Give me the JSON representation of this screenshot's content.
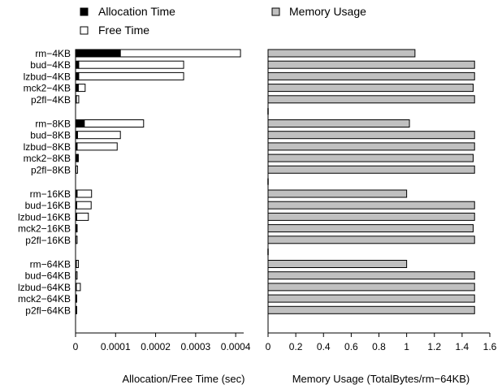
{
  "chart_data": [
    {
      "type": "bar",
      "orientation": "horizontal",
      "stacked": true,
      "xlabel": "Allocation/Free Time (sec)",
      "ylabel": "",
      "xlim": [
        0,
        0.00042
      ],
      "xticks": [
        "0",
        "0.0001",
        "0.0002",
        "0.0003",
        "0.0004"
      ],
      "xtick_values": [
        0,
        0.0001,
        0.0002,
        0.0003,
        0.0004
      ],
      "grid": false,
      "legend": "top",
      "categories": [
        "rm−4KB",
        "bud−4KB",
        "lzbud−4KB",
        "mck2−4KB",
        "p2fl−4KB",
        "rm−8KB",
        "bud−8KB",
        "lzbud−8KB",
        "mck2−8KB",
        "p2fl−8KB",
        "rm−16KB",
        "bud−16KB",
        "lzbud−16KB",
        "mck2−16KB",
        "p2fl−16KB",
        "rm−64KB",
        "bud−64KB",
        "lzbud−64KB",
        "mck2−64KB",
        "p2fl−64KB"
      ],
      "series": [
        {
          "name": "Allocation Time",
          "color": "#000000",
          "values": [
            0.000112,
            8e-06,
            8e-06,
            7e-06,
            2e-06,
            2.2e-05,
            5e-06,
            4e-06,
            5e-06,
            1e-06,
            4e-06,
            3e-06,
            3e-06,
            2e-06,
            1e-06,
            2e-06,
            1e-06,
            2e-06,
            1e-06,
            1e-06
          ]
        },
        {
          "name": "Free Time",
          "color": "#ffffff",
          "values": [
            0.0003,
            0.000262,
            0.000262,
            1.7e-05,
            6e-06,
            0.000148,
            0.000107,
            0.0001,
            2e-06,
            4e-06,
            3.6e-05,
            3.6e-05,
            2.9e-05,
            2e-06,
            3e-06,
            5e-06,
            3e-06,
            1e-05,
            2e-06,
            2e-06
          ]
        }
      ]
    },
    {
      "type": "bar",
      "orientation": "horizontal",
      "xlabel": "Memory Usage (TotalBytes/rm−64KB)",
      "ylabel": "",
      "xlim": [
        0,
        1.6
      ],
      "xticks": [
        "0",
        "0.2",
        "0.4",
        "0.6",
        "0.8",
        "1",
        "1.2",
        "1.4",
        "1.6"
      ],
      "xtick_values": [
        0,
        0.2,
        0.4,
        0.6,
        0.8,
        1.0,
        1.2,
        1.4,
        1.6
      ],
      "grid": false,
      "legend": "top",
      "categories": [
        "rm−4KB",
        "bud−4KB",
        "lzbud−4KB",
        "mck2−4KB",
        "p2fl−4KB",
        "rm−8KB",
        "bud−8KB",
        "lzbud−8KB",
        "mck2−8KB",
        "p2fl−8KB",
        "rm−16KB",
        "bud−16KB",
        "lzbud−16KB",
        "mck2−16KB",
        "p2fl−16KB",
        "rm−64KB",
        "bud−64KB",
        "lzbud−64KB",
        "mck2−64KB",
        "p2fl−64KB"
      ],
      "series": [
        {
          "name": "Memory Usage",
          "color": "#c0c0c0",
          "values": [
            1.06,
            1.49,
            1.49,
            1.48,
            1.49,
            1.02,
            1.49,
            1.49,
            1.48,
            1.49,
            1.0,
            1.49,
            1.49,
            1.48,
            1.49,
            1.0,
            1.49,
            1.49,
            1.49,
            1.49
          ]
        }
      ]
    }
  ]
}
